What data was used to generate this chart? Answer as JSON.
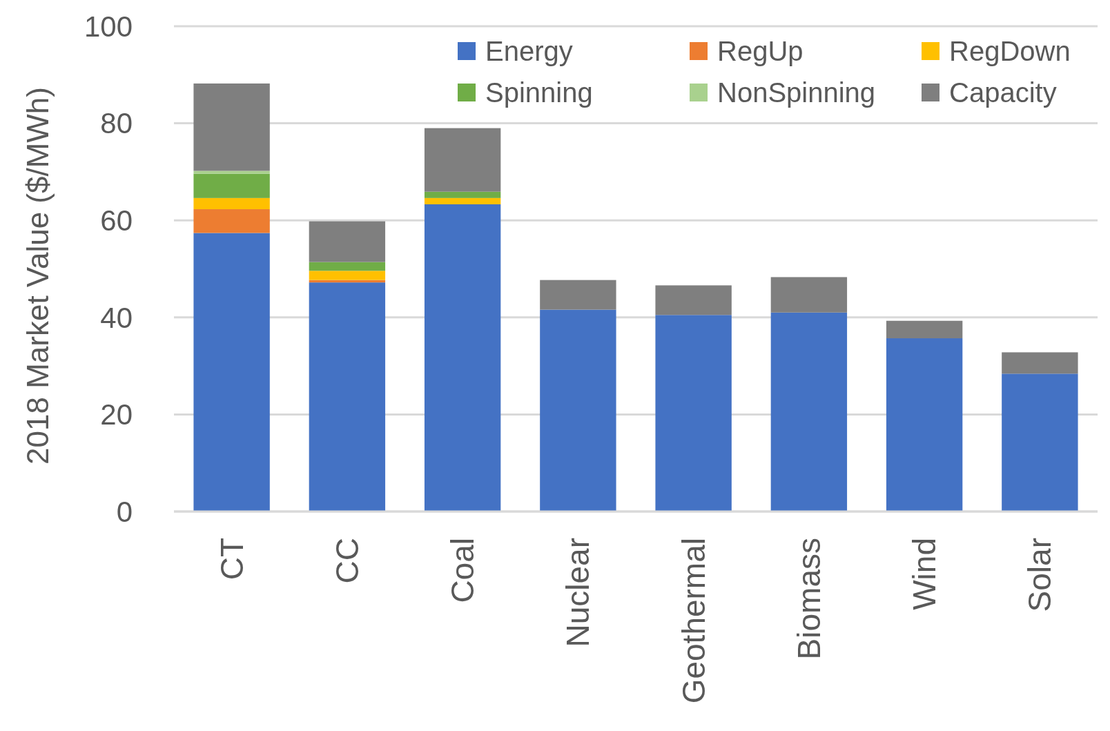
{
  "chart_data": {
    "type": "bar",
    "stacked": true,
    "ylabel": "2018 Market Value ($/MWh)",
    "categories": [
      "CT",
      "CC",
      "Coal",
      "Nuclear",
      "Geothermal",
      "Biomass",
      "Wind",
      "Solar"
    ],
    "series": [
      {
        "name": "Energy",
        "color": "#4472c4",
        "values": [
          57.4,
          47.2,
          63.3,
          41.6,
          40.5,
          41.0,
          35.7,
          28.4
        ]
      },
      {
        "name": "RegUp",
        "color": "#ed7d31",
        "values": [
          4.9,
          0.5,
          0,
          0,
          0,
          0,
          0,
          0
        ]
      },
      {
        "name": "RegDown",
        "color": "#ffc000",
        "values": [
          2.3,
          1.9,
          1.3,
          0,
          0,
          0,
          0,
          0
        ]
      },
      {
        "name": "Spinning",
        "color": "#70ad47",
        "values": [
          5.0,
          1.8,
          1.3,
          0,
          0,
          0,
          0,
          0
        ]
      },
      {
        "name": "NonSpinning",
        "color": "#a9d18e",
        "values": [
          0.6,
          0,
          0,
          0,
          0,
          0,
          0,
          0
        ]
      },
      {
        "name": "Capacity",
        "color": "#7f7f7f",
        "values": [
          18.0,
          8.4,
          13.1,
          6.1,
          6.1,
          7.3,
          3.6,
          4.4
        ]
      }
    ],
    "ylim": [
      0,
      100
    ],
    "yticks": [
      0,
      20,
      40,
      60,
      80,
      100
    ],
    "grid": "y",
    "legend": "top right"
  }
}
